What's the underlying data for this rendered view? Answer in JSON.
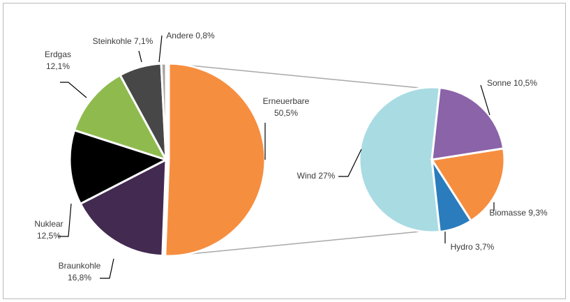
{
  "chart_data": [
    {
      "type": "pie",
      "role": "main",
      "title": "",
      "series": [
        {
          "name": "Erneuerbare",
          "label_lines": [
            "Erneuerbare",
            "50,5%"
          ],
          "value": 50.5,
          "color": "#f68e3f"
        },
        {
          "name": "Braunkohle",
          "label_lines": [
            "Braunkohle",
            "16,8%"
          ],
          "value": 16.8,
          "color": "#432a51"
        },
        {
          "name": "Nuklear",
          "label_lines": [
            "Nuklear",
            "12,5%"
          ],
          "value": 12.5,
          "color": "#000000"
        },
        {
          "name": "Erdgas",
          "label_lines": [
            "Erdgas",
            "12,1%"
          ],
          "value": 12.1,
          "color": "#8fbb4e"
        },
        {
          "name": "Steinkohle",
          "label_lines": [
            "Steinkohle 7,1%"
          ],
          "value": 7.1,
          "color": "#474747"
        },
        {
          "name": "Andere",
          "label_lines": [
            "Andere 0,8%"
          ],
          "value": 0.8,
          "color": "#a6a6a6"
        }
      ],
      "exploded_slice": "Erneuerbare"
    },
    {
      "type": "pie",
      "role": "breakdown",
      "title": "",
      "series": [
        {
          "name": "Wind",
          "label_lines": [
            "Wind 27%"
          ],
          "value": 27,
          "color": "#a9dbe3"
        },
        {
          "name": "Sonne",
          "label_lines": [
            "Sonne 10,5%"
          ],
          "value": 10.5,
          "color": "#8b63a8"
        },
        {
          "name": "Biomasse",
          "label_lines": [
            "Biomasse 9,3%"
          ],
          "value": 9.3,
          "color": "#f68e3f"
        },
        {
          "name": "Hydro",
          "label_lines": [
            "Hydro 3,7%"
          ],
          "value": 3.7,
          "color": "#2a7cbd"
        }
      ]
    }
  ]
}
